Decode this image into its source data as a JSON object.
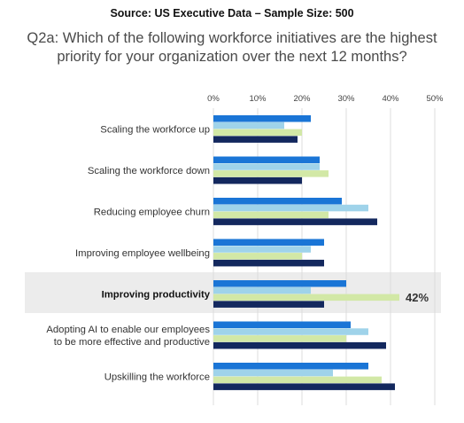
{
  "header": {
    "source": "Source: US Executive Data – Sample Size: 500",
    "question": "Q2a: Which of the following workforce initiatives are the highest priority for your organization over the next 12 months?"
  },
  "chart_data": {
    "type": "bar",
    "orientation": "horizontal",
    "title": "Q2a: Which of the following workforce initiatives are the highest priority for your organization over the next 12 months?",
    "subtitle": "Source: US Executive Data – Sample Size: 500",
    "categories": [
      [
        "Scaling the workforce up"
      ],
      [
        "Scaling the workforce down"
      ],
      [
        "Reducing employee churn"
      ],
      [
        "Improving employee wellbeing"
      ],
      [
        "Improving productivity"
      ],
      [
        "Adopting AI to enable our employees",
        "to be more effective and productive"
      ],
      [
        "Upskilling the workforce"
      ]
    ],
    "x_ticks": [
      "0%",
      "10%",
      "20%",
      "30%",
      "40%",
      "50%"
    ],
    "xlim": [
      0,
      50
    ],
    "grid": true,
    "series": [
      {
        "color": "#1a75d6",
        "values": [
          22,
          24,
          29,
          25,
          30,
          31,
          35
        ]
      },
      {
        "color": "#9fd3ea",
        "values": [
          16,
          24,
          35,
          22,
          22,
          35,
          27
        ]
      },
      {
        "color": "#d2e8a6",
        "values": [
          20,
          26,
          26,
          20,
          42,
          30,
          38
        ]
      },
      {
        "color": "#13285e",
        "values": [
          19,
          20,
          37,
          25,
          25,
          39,
          41
        ]
      }
    ],
    "highlight": {
      "category_index": 4,
      "series_index": 2,
      "label": "42%",
      "band_color": "#ececec"
    }
  }
}
